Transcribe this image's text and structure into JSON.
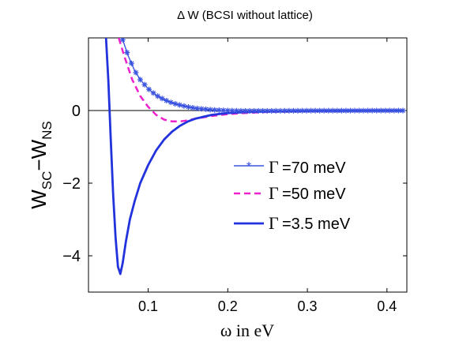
{
  "chart_data": {
    "type": "line",
    "title": "Δ W (BCSI without lattice)",
    "xlabel": "ω in eV",
    "ylabel_main": "W",
    "ylabel_sub1": "SC",
    "ylabel_dash": "−W",
    "ylabel_sub2": "NS",
    "xlim": [
      0.025,
      0.425
    ],
    "ylim": [
      -5,
      2
    ],
    "xticks": [
      0.1,
      0.2,
      0.3,
      0.4
    ],
    "xtick_labels": [
      "0.1",
      "0.2",
      "0.3",
      "0.4"
    ],
    "yticks": [
      -4,
      -2,
      0
    ],
    "ytick_labels": [
      "−4",
      "−2",
      "0"
    ],
    "zero_line": 0,
    "grid": false,
    "legend_position": "center-right",
    "series": [
      {
        "name": "=70 meV",
        "symbol": "Γ",
        "color": "#3a53e0",
        "style": "line-star",
        "x": [
          0.068,
          0.075,
          0.083,
          0.09,
          0.1,
          0.11,
          0.12,
          0.13,
          0.14,
          0.15,
          0.16,
          0.17,
          0.18,
          0.19,
          0.2,
          0.22,
          0.25,
          0.3,
          0.35,
          0.4,
          0.42
        ],
        "y": [
          1.95,
          1.5,
          1.1,
          0.85,
          0.6,
          0.42,
          0.3,
          0.21,
          0.15,
          0.1,
          0.06,
          0.04,
          0.02,
          0.01,
          0.0,
          -0.01,
          -0.01,
          -0.005,
          -0.003,
          -0.002,
          -0.002
        ]
      },
      {
        "name": "=50 meV",
        "symbol": "Γ",
        "color": "#ee22cc",
        "style": "dashed",
        "x": [
          0.063,
          0.07,
          0.08,
          0.09,
          0.1,
          0.11,
          0.12,
          0.13,
          0.14,
          0.15,
          0.16,
          0.18,
          0.2,
          0.22,
          0.25,
          0.3,
          0.35,
          0.4,
          0.42
        ],
        "y": [
          2.0,
          1.5,
          0.85,
          0.4,
          0.1,
          -0.12,
          -0.25,
          -0.3,
          -0.3,
          -0.27,
          -0.22,
          -0.15,
          -0.1,
          -0.07,
          -0.04,
          -0.02,
          -0.01,
          -0.005,
          -0.005
        ]
      },
      {
        "name": "=3.5 meV",
        "symbol": "Γ",
        "color": "#2233dd",
        "style": "solid",
        "x": [
          0.047,
          0.05,
          0.053,
          0.056,
          0.059,
          0.062,
          0.065,
          0.068,
          0.072,
          0.077,
          0.083,
          0.09,
          0.1,
          0.11,
          0.12,
          0.13,
          0.14,
          0.15,
          0.16,
          0.18,
          0.2,
          0.22,
          0.25,
          0.3,
          0.35,
          0.4,
          0.42
        ],
        "y": [
          2.0,
          0.8,
          -0.8,
          -2.3,
          -3.5,
          -4.3,
          -4.5,
          -4.2,
          -3.6,
          -3.0,
          -2.5,
          -2.0,
          -1.5,
          -1.1,
          -0.8,
          -0.58,
          -0.42,
          -0.3,
          -0.22,
          -0.12,
          -0.07,
          -0.045,
          -0.025,
          -0.01,
          -0.005,
          -0.003,
          -0.002
        ]
      }
    ]
  }
}
